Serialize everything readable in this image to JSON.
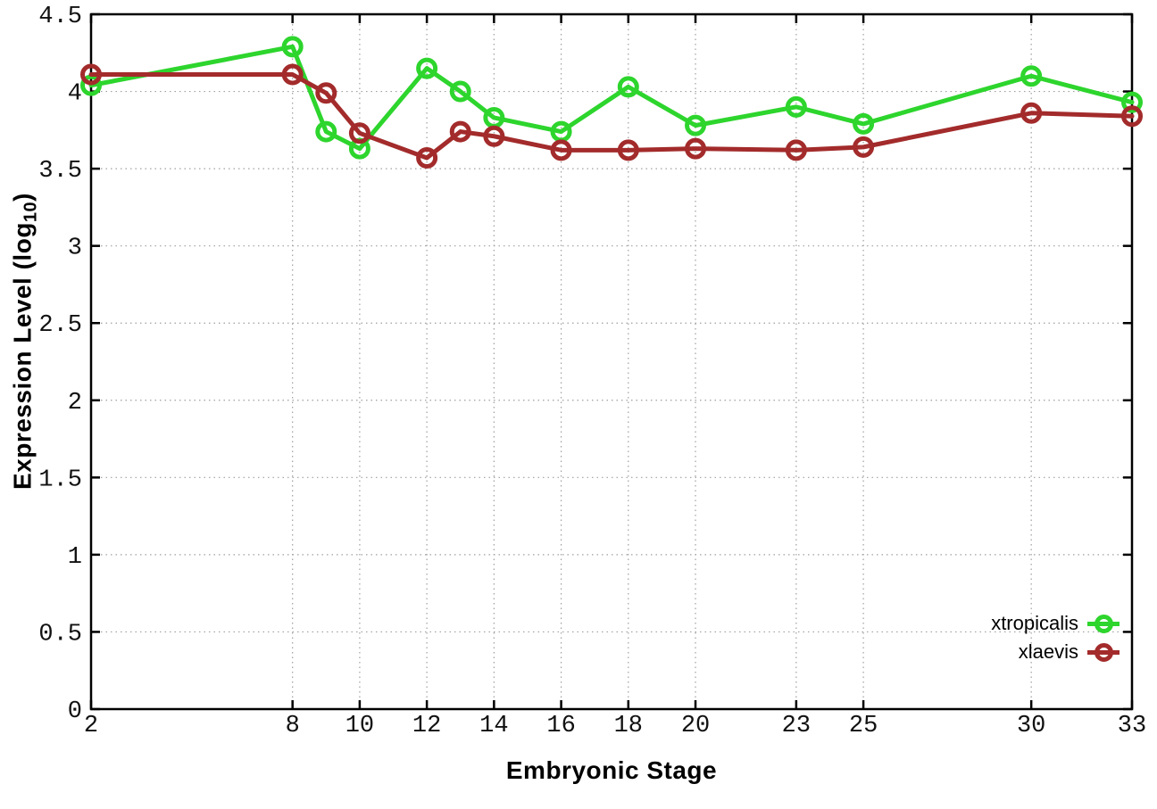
{
  "figure": {
    "background": "#ffffff",
    "x_axis_title": "Embryonic Stage",
    "y_axis_title_main": "Expression Level (log",
    "y_axis_title_sub": "10",
    "y_axis_title_end": ")"
  },
  "chart_data": {
    "type": "line",
    "title": "",
    "xlabel": "Embryonic Stage",
    "ylabel": "Expression Level (log10)",
    "x": [
      2,
      8,
      9,
      10,
      12,
      13,
      14,
      16,
      18,
      20,
      23,
      25,
      30,
      33
    ],
    "series": [
      {
        "name": "xtropicalis",
        "color": "#2dd52d",
        "values": [
          4.04,
          4.29,
          3.74,
          3.63,
          4.15,
          4.0,
          3.83,
          3.74,
          4.03,
          3.78,
          3.9,
          3.79,
          4.1,
          3.93
        ]
      },
      {
        "name": "xlaevis",
        "color": "#a32b2b",
        "values": [
          4.11,
          4.11,
          3.99,
          3.73,
          3.57,
          3.74,
          3.71,
          3.62,
          3.62,
          3.63,
          3.62,
          3.64,
          3.86,
          3.84
        ]
      }
    ],
    "xlim": [
      2,
      33
    ],
    "ylim": [
      0,
      4.5
    ],
    "xticks": [
      2,
      8,
      10,
      12,
      14,
      16,
      18,
      20,
      23,
      25,
      30,
      33
    ],
    "xtick_labels": [
      "2",
      "8",
      "10",
      "12",
      "14",
      "16",
      "18",
      "20",
      "23",
      "25",
      "30",
      "33"
    ],
    "yticks": [
      0,
      0.5,
      1,
      1.5,
      2,
      2.5,
      3,
      3.5,
      4,
      4.5
    ],
    "ytick_labels": [
      "0",
      "0.5",
      "1",
      "1.5",
      "2",
      "2.5",
      "3",
      "3.5",
      "4",
      "4.5"
    ],
    "grid": true,
    "grid_color": "#9f9f9f",
    "axis_color": "#000000",
    "legend_position": "inside-bottom-right",
    "marker": "open-circle",
    "line_width": 5
  }
}
